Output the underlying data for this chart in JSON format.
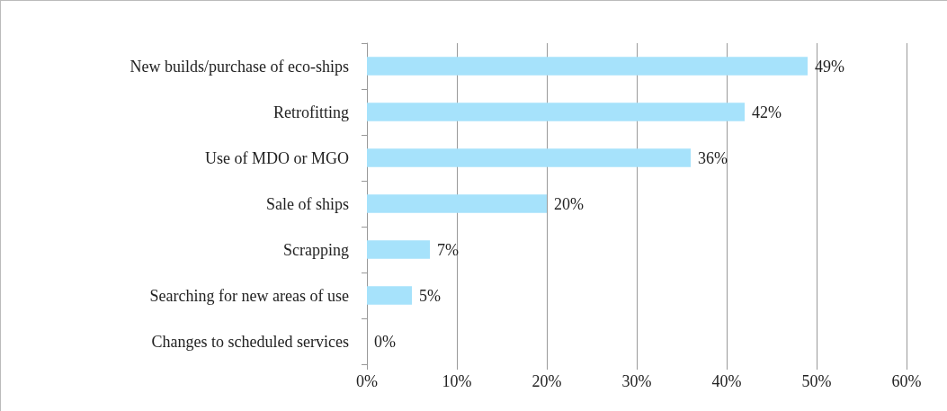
{
  "chart_data": {
    "type": "bar",
    "orientation": "horizontal",
    "categories": [
      "New builds/purchase of eco-ships",
      "Retrofitting",
      "Use of MDO or MGO",
      "Sale of ships",
      "Scrapping",
      "Searching for new areas of use",
      "Changes to scheduled services"
    ],
    "values": [
      49,
      42,
      36,
      20,
      7,
      5,
      0
    ],
    "value_labels": [
      "49%",
      "42%",
      "36%",
      "20%",
      "7%",
      "5%",
      "0%"
    ],
    "color": "#a6e2fb",
    "xlim": [
      0,
      60
    ],
    "xticks": [
      {
        "value": 0,
        "label": "0%"
      },
      {
        "value": 10,
        "label": "10%"
      },
      {
        "value": 20,
        "label": "20%"
      },
      {
        "value": 30,
        "label": "30%"
      },
      {
        "value": 40,
        "label": "40%"
      },
      {
        "value": 50,
        "label": "50%"
      },
      {
        "value": 60,
        "label": "60%"
      }
    ],
    "grid": "x"
  }
}
